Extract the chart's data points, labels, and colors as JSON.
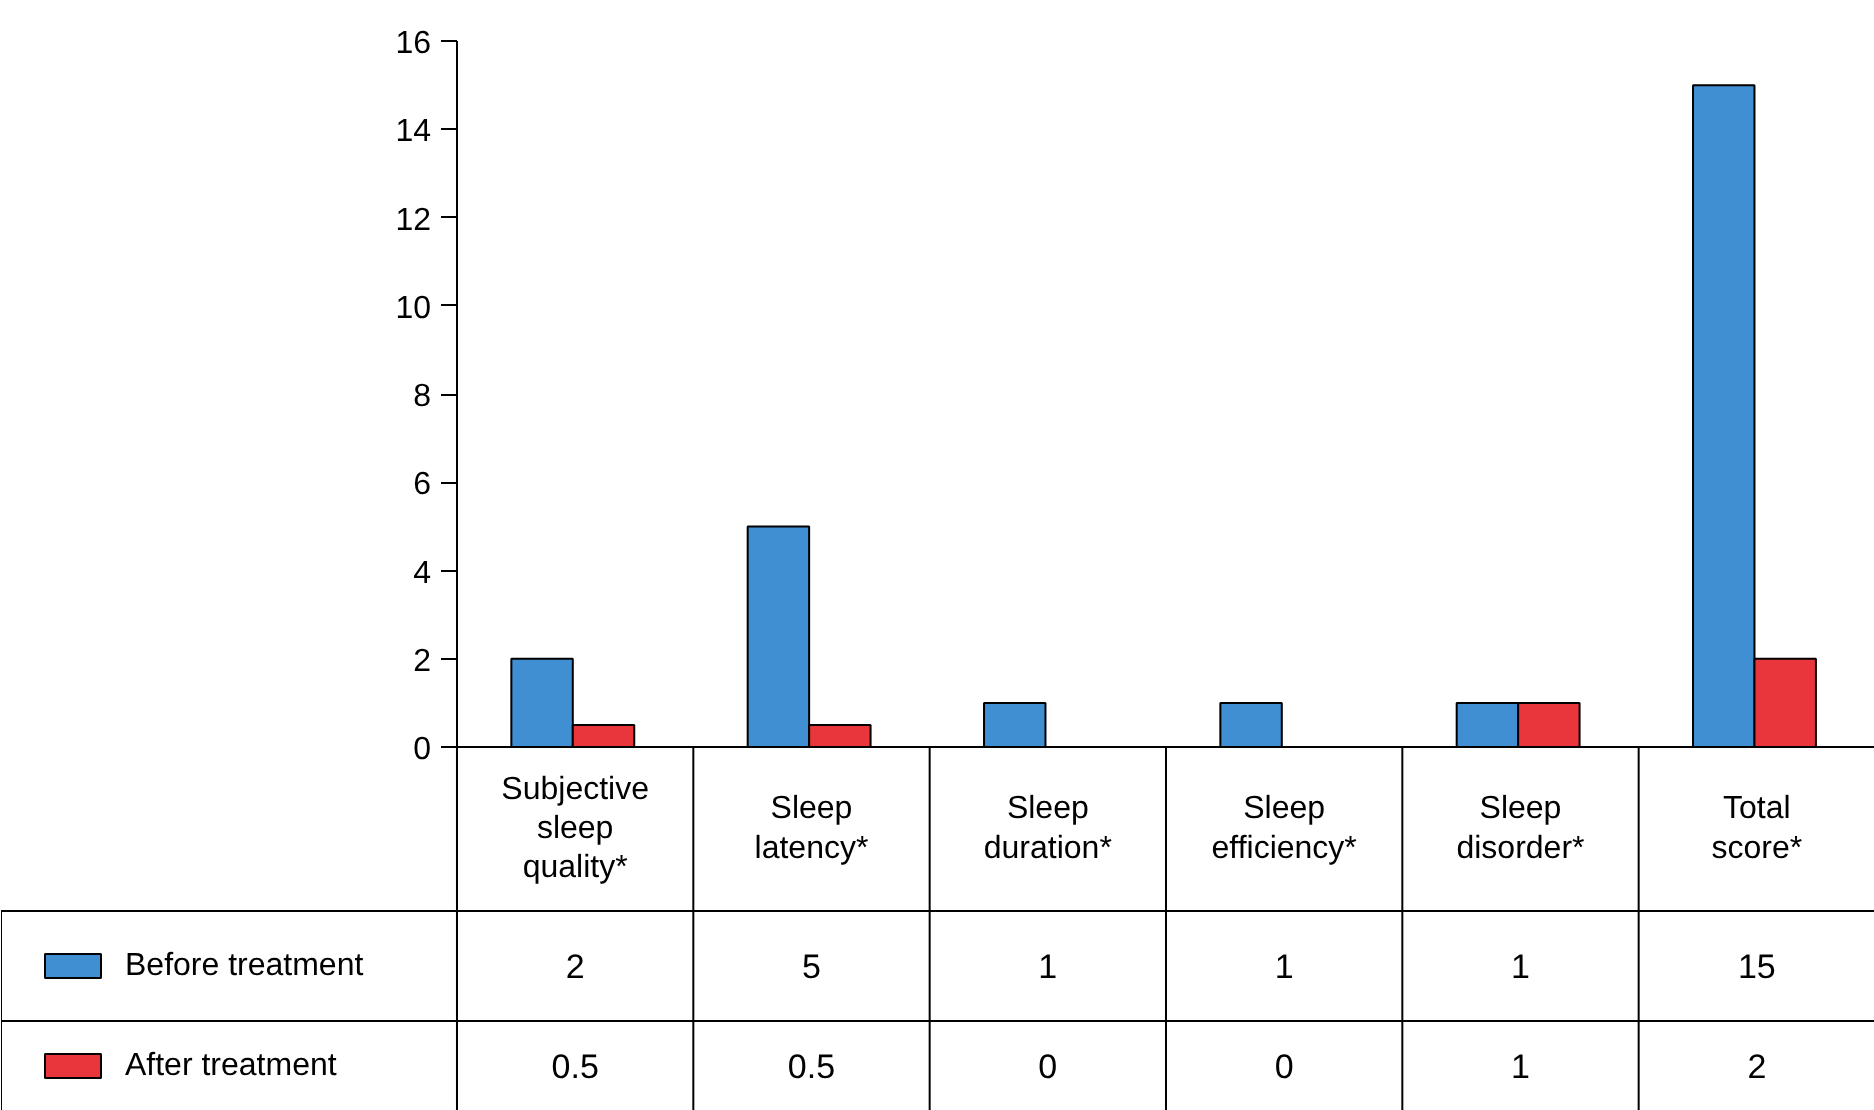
{
  "chart_data": {
    "type": "bar",
    "categories": [
      "Subjective sleep quality*",
      "Sleep latency*",
      "Sleep duration*",
      "Sleep efficiency*",
      "Sleep disorder*",
      "Total score*"
    ],
    "series": [
      {
        "name": "Before treatment",
        "color": "#3f8fd2",
        "values": [
          2,
          5,
          1,
          1,
          1,
          15
        ]
      },
      {
        "name": "After treatment",
        "color": "#e8363c",
        "values": [
          0.5,
          0.5,
          0,
          0,
          1,
          2
        ]
      }
    ],
    "ylim": [
      0,
      16
    ],
    "yticks": [
      0,
      2,
      4,
      6,
      8,
      10,
      12,
      14,
      16
    ],
    "data_labels": true,
    "legend": "bottom"
  }
}
